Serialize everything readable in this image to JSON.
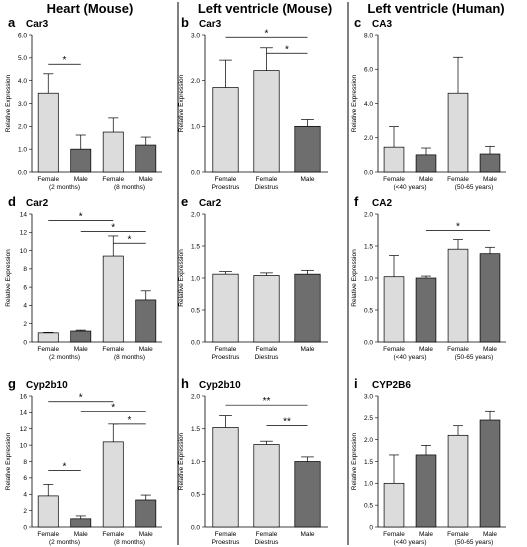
{
  "column_titles": [
    "Heart (Mouse)",
    "Left ventricle (Mouse)",
    "Left ventricle (Human)"
  ],
  "y_axis_label": "Relative Expression",
  "colors": {
    "female_bar": "#dcdcdc",
    "male_bar": "#6e6e6e",
    "axis": "#000000"
  },
  "chart_data": [
    {
      "id": "a",
      "letter": "a",
      "title": "Car3",
      "type": "bar",
      "categories": [
        [
          "Female",
          "(2 months)"
        ],
        [
          "Male",
          ""
        ],
        [
          "Female",
          "(8 months)"
        ],
        [
          "Male",
          ""
        ]
      ],
      "values": [
        3.45,
        1.0,
        1.75,
        1.18
      ],
      "errors": [
        0.85,
        0.62,
        0.62,
        0.35
      ],
      "fills": [
        "female",
        "male",
        "female",
        "male"
      ],
      "ylim": [
        0,
        6.0
      ],
      "yticks": [
        "0.0",
        "1.0",
        "2.0",
        "3.0",
        "4.0",
        "5.0",
        "6.0"
      ],
      "significance": [
        {
          "from": 0,
          "to": 1,
          "y": 4.72,
          "label": "*"
        }
      ]
    },
    {
      "id": "b",
      "letter": "b",
      "title": "Car3",
      "type": "bar",
      "categories": [
        [
          "Female",
          "Proestrus"
        ],
        [
          "Female",
          "Diestrus"
        ],
        [
          "Male",
          ""
        ]
      ],
      "values": [
        1.85,
        2.22,
        1.0
      ],
      "errors": [
        0.6,
        0.5,
        0.15
      ],
      "fills": [
        "female",
        "female",
        "male"
      ],
      "ylim": [
        0,
        3.0
      ],
      "yticks": [
        "0.0",
        "1.0",
        "2.0",
        "3.0"
      ],
      "significance": [
        {
          "from": 0,
          "to": 2,
          "y": 2.95,
          "label": "*"
        },
        {
          "from": 1,
          "to": 2,
          "y": 2.6,
          "label": "*"
        }
      ]
    },
    {
      "id": "c",
      "letter": "c",
      "title": "CA3",
      "type": "bar",
      "categories": [
        [
          "Female",
          "(<40 years)"
        ],
        [
          "Male",
          ""
        ],
        [
          "Female",
          "(50-65 years)"
        ],
        [
          "Male",
          ""
        ]
      ],
      "values": [
        1.45,
        1.0,
        4.6,
        1.05
      ],
      "errors": [
        1.2,
        0.4,
        2.1,
        0.45
      ],
      "fills": [
        "female",
        "male",
        "female",
        "male"
      ],
      "ylim": [
        0,
        8.0
      ],
      "yticks": [
        "0.0",
        "2.0",
        "4.0",
        "6.0",
        "8.0"
      ],
      "significance": []
    },
    {
      "id": "d",
      "letter": "d",
      "title": "Car2",
      "type": "bar",
      "categories": [
        [
          "Female",
          "(2 months)"
        ],
        [
          "Male",
          ""
        ],
        [
          "Female",
          "(8 months)"
        ],
        [
          "Male",
          ""
        ]
      ],
      "values": [
        1.0,
        1.2,
        9.4,
        4.6
      ],
      "errors": [
        0.05,
        0.1,
        2.2,
        1.0
      ],
      "fills": [
        "female",
        "male",
        "female",
        "male"
      ],
      "ylim": [
        0,
        14
      ],
      "yticks": [
        "0",
        "2",
        "4",
        "6",
        "8",
        "10",
        "12",
        "14"
      ],
      "significance": [
        {
          "from": 0,
          "to": 2,
          "y": 13.3,
          "label": "*"
        },
        {
          "from": 1,
          "to": 3,
          "y": 12.1,
          "label": "*"
        },
        {
          "from": 2,
          "to": 3,
          "y": 10.8,
          "label": "*"
        }
      ]
    },
    {
      "id": "e",
      "letter": "e",
      "title": "Car2",
      "type": "bar",
      "categories": [
        [
          "Female",
          "Proestrus"
        ],
        [
          "Female",
          "Diestrus"
        ],
        [
          "Male",
          ""
        ]
      ],
      "values": [
        1.06,
        1.04,
        1.06
      ],
      "errors": [
        0.04,
        0.04,
        0.06
      ],
      "fills": [
        "female",
        "female",
        "male"
      ],
      "ylim": [
        0,
        2.0
      ],
      "yticks": [
        "0.0",
        "0.5",
        "1.0",
        "1.5",
        "2.0"
      ],
      "significance": []
    },
    {
      "id": "f",
      "letter": "f",
      "title": "CA2",
      "type": "bar",
      "categories": [
        [
          "Female",
          "(<40 years)"
        ],
        [
          "Male",
          ""
        ],
        [
          "Female",
          "(50-65 years)"
        ],
        [
          "Male",
          ""
        ]
      ],
      "values": [
        1.02,
        1.0,
        1.45,
        1.38
      ],
      "errors": [
        0.33,
        0.03,
        0.15,
        0.1
      ],
      "fills": [
        "female",
        "male",
        "female",
        "male"
      ],
      "ylim": [
        0,
        2.0
      ],
      "yticks": [
        "0.0",
        "0.5",
        "1.0",
        "1.5",
        "2.0"
      ],
      "significance": [
        {
          "from": 1,
          "to": 3,
          "y": 1.74,
          "label": "*"
        }
      ]
    },
    {
      "id": "g",
      "letter": "g",
      "title": "Cyp2b10",
      "type": "bar",
      "categories": [
        [
          "Female",
          "(2 months)"
        ],
        [
          "Male",
          ""
        ],
        [
          "Female",
          "(8 months)"
        ],
        [
          "Male",
          ""
        ]
      ],
      "values": [
        3.8,
        1.0,
        10.4,
        3.3
      ],
      "errors": [
        1.4,
        0.35,
        2.2,
        0.6
      ],
      "fills": [
        "female",
        "male",
        "female",
        "male"
      ],
      "ylim": [
        0,
        16
      ],
      "yticks": [
        "0",
        "2",
        "4",
        "6",
        "8",
        "10",
        "12",
        "14",
        "16"
      ],
      "significance": [
        {
          "from": 0,
          "to": 2,
          "y": 15.3,
          "label": "*"
        },
        {
          "from": 1,
          "to": 3,
          "y": 14.1,
          "label": "*"
        },
        {
          "from": 2,
          "to": 3,
          "y": 12.6,
          "label": "*"
        },
        {
          "from": 0,
          "to": 1,
          "y": 6.9,
          "label": "*"
        }
      ]
    },
    {
      "id": "h",
      "letter": "h",
      "title": "Cyp2b10",
      "type": "bar",
      "categories": [
        [
          "Female",
          "Proestrus"
        ],
        [
          "Female",
          "Diestrus"
        ],
        [
          "Male",
          ""
        ]
      ],
      "values": [
        1.52,
        1.26,
        1.0
      ],
      "errors": [
        0.18,
        0.05,
        0.07
      ],
      "fills": [
        "female",
        "female",
        "male"
      ],
      "ylim": [
        0,
        2.0
      ],
      "yticks": [
        "0.0",
        "0.5",
        "1.0",
        "1.5",
        "2.0"
      ],
      "significance": [
        {
          "from": 0,
          "to": 2,
          "y": 1.86,
          "label": "**"
        },
        {
          "from": 1,
          "to": 2,
          "y": 1.55,
          "label": "**"
        }
      ]
    },
    {
      "id": "i",
      "letter": "i",
      "title": "CYP2B6",
      "type": "bar",
      "categories": [
        [
          "Female",
          "(<40 years)"
        ],
        [
          "Male",
          ""
        ],
        [
          "Female",
          "(50-65 years)"
        ],
        [
          "Male",
          ""
        ]
      ],
      "values": [
        1.0,
        1.65,
        2.1,
        2.45
      ],
      "errors": [
        0.65,
        0.22,
        0.22,
        0.2
      ],
      "fills": [
        "female",
        "male",
        "female",
        "male"
      ],
      "ylim": [
        0,
        3.0
      ],
      "yticks": [
        "0",
        "0.5",
        "1.0",
        "1.5",
        "2.0",
        "2.5",
        "3.0"
      ],
      "significance": []
    }
  ]
}
